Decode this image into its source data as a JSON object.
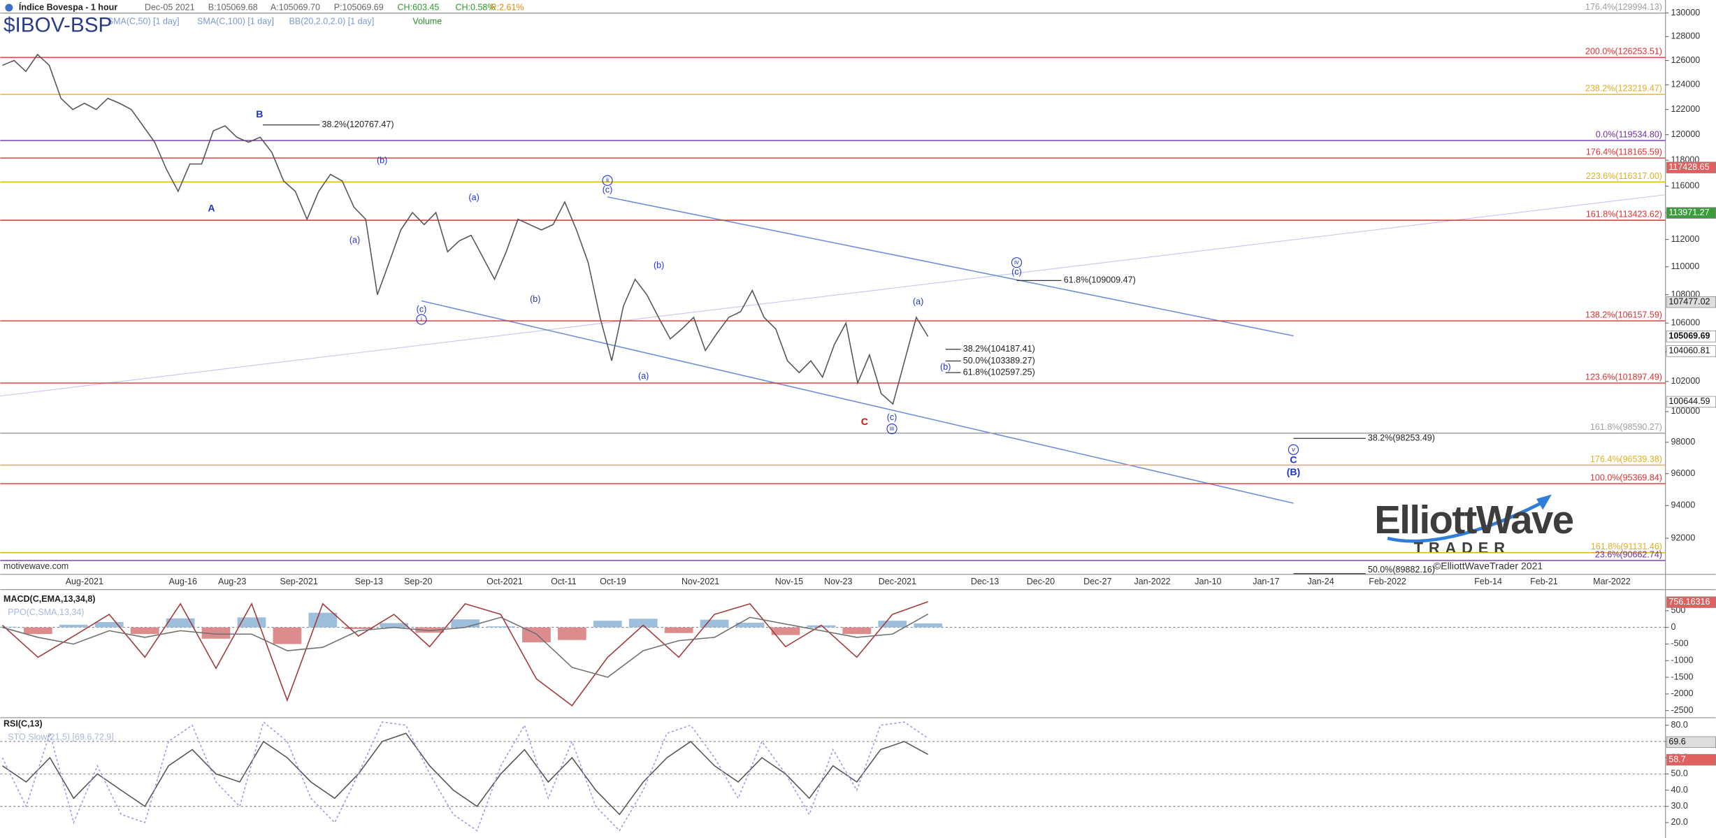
{
  "chart_data": [
    {
      "type": "line",
      "title": "Índice Bovespa - 1 hour",
      "symbol": "$IBOV-BSP",
      "date": "Dec-05 2021",
      "quote": [
        "B:105069.68",
        "A:105069.70",
        "P:105069.69"
      ],
      "change": [
        "CH:603.45",
        "CH:0.58%"
      ],
      "range": "R:2.61%",
      "studies": [
        "SMA(C,50) [1 day]",
        "SMA(C,100) [1 day]",
        "BB(20,2.0,2.0) [1 day]",
        "Volume"
      ],
      "xtick_labels": [
        "Aug-2021",
        "Aug-16",
        "Aug-23",
        "Sep-2021",
        "Sep-13",
        "Sep-20",
        "Oct-2021",
        "Oct-11",
        "Oct-19",
        "Nov-2021",
        "Nov-15",
        "Nov-23",
        "Dec-2021",
        "Dec-13",
        "Dec-20",
        "Dec-27",
        "Jan-2022",
        "Jan-10",
        "Jan-17",
        "Jan-24",
        "Feb-2022",
        "Feb-14",
        "Feb-21",
        "Mar-2022"
      ],
      "log": true,
      "ylim": [
        89840,
        131120
      ],
      "yticks": [
        92000,
        94000,
        96000,
        98000,
        100000,
        102000,
        104000,
        106000,
        108000,
        110000,
        112000,
        114000,
        116000,
        118000,
        120000,
        122000,
        124000,
        126000,
        128000,
        130000
      ],
      "series": [
        {
          "color": "#555555",
          "values": [
            125600,
            126000,
            125100,
            126500,
            125600,
            122900,
            122000,
            122500,
            122000,
            122900,
            122500,
            122000,
            120700,
            119400,
            117300,
            115600,
            117700,
            117700,
            120300,
            120700,
            119800,
            119400,
            119800,
            118600,
            116400,
            115600,
            113500,
            115600,
            116900,
            116400,
            114400,
            113500,
            108000,
            110300,
            112700,
            114000,
            113100,
            114000,
            111100,
            111900,
            112300,
            110700,
            109100,
            111100,
            113500,
            113100,
            112700,
            113100,
            114800,
            112700,
            110300,
            106400,
            103400,
            107200,
            109100,
            108000,
            106400,
            104900,
            105600,
            106400,
            104100,
            105300,
            106400,
            106800,
            108300,
            106400,
            105600,
            103400,
            102600,
            103400,
            102300,
            104500,
            106000,
            101900,
            103800,
            101200,
            100500,
            103400,
            106400,
            105070
          ]
        }
      ],
      "levels": [
        {
          "label": "176.4%(129994.13)",
          "value": 129994.13,
          "color": "#a0a0a0"
        },
        {
          "label": "200.0%(126253.51)",
          "value": 126253.51,
          "color": "#e03030"
        },
        {
          "label": "238.2%(123219.47)",
          "value": 123219.47,
          "color": "#e0b020"
        },
        {
          "label": "0.0%(119534.80)",
          "value": 119534.8,
          "color": "#7030a0"
        },
        {
          "label": "176.4%(118165.59)",
          "value": 118165.59,
          "color": "#e03030"
        },
        {
          "label": "223.6%(116317.00)",
          "value": 116317.0,
          "color": "#e0b020"
        },
        {
          "label": "161.8%(113423.62)",
          "value": 113423.62,
          "color": "#e03030"
        },
        {
          "label": "138.2%(106157.59)",
          "value": 106157.59,
          "color": "#e03030"
        },
        {
          "label": "123.6%(101897.49)",
          "value": 101897.49,
          "color": "#e03030"
        },
        {
          "label": "161.8%(98590.27)",
          "value": 98590.27,
          "color": "#a0a0a0"
        },
        {
          "label": "176.4%(96539.38)",
          "value": 96539.38,
          "color": "#e0b020"
        },
        {
          "label": "100.0%(95369.84)",
          "value": 95369.84,
          "color": "#e03030"
        },
        {
          "label": "161.8%(91131.46)",
          "value": 91131.46,
          "color": "#e0b020"
        },
        {
          "label": "23.6%(90662.74)",
          "value": 90662.74,
          "color": "#7030a0"
        }
      ],
      "fib_marks": [
        {
          "label": "38.2%(120767.47)",
          "value": 120767.47
        },
        {
          "label": "61.8%(109009.47)",
          "value": 109009.47
        },
        {
          "label": "38.2%(104187.41)",
          "value": 104187.41
        },
        {
          "label": "50.0%(103389.27)",
          "value": 103389.27
        },
        {
          "label": "61.8%(102597.25)",
          "value": 102597.25
        },
        {
          "label": "38.2%(98253.49)",
          "value": 98253.49
        },
        {
          "label": "50.0%(89882.16)",
          "value": 89882.16
        }
      ],
      "price_tags": [
        {
          "value": 117428.65,
          "color": "#e06060"
        },
        {
          "value": 113971.27,
          "color": "#3c9c3c"
        },
        {
          "value": 107477.02,
          "color": "#dddddd"
        },
        {
          "value": 105069.69,
          "color": "#ffffff"
        },
        {
          "value": 104060.81,
          "color": "#ffffff"
        },
        {
          "value": 100644.59,
          "color": "#ffffff"
        }
      ],
      "wave_labels": [
        "A",
        "B",
        "C",
        "(a)",
        "(b)",
        "(c)",
        "i",
        "(a)",
        "(b)",
        "(c)",
        "ii",
        "(a)",
        "(b)",
        "(c)",
        "iii",
        "(a)",
        "(b)",
        "(c)",
        "iv",
        "v",
        "C",
        "(B)"
      ],
      "credits": [
        "motivewave.com",
        "©ElliottWaveTrader 2021"
      ],
      "logo": [
        "ElliottWave",
        "TRADER"
      ]
    },
    {
      "type": "macd",
      "title": "MACD(C,EMA,13,34,8)",
      "subtitle": "PPO(C,SMA,13,34)",
      "ylim": [
        -2680,
        1100
      ],
      "yticks": [
        500,
        0,
        -500,
        -1000,
        -1500,
        -2000,
        -2500
      ],
      "ref_lines": [
        0
      ],
      "series": [
        {
          "color": "#a03838",
          "values": [
            65,
            -900,
            -260,
            390,
            -900,
            710,
            -1230,
            710,
            -2190,
            710,
            -260,
            390,
            -580,
            710,
            390,
            -1550,
            -2350,
            -900,
            65,
            -900,
            390,
            710,
            -580,
            65,
            -900,
            390,
            770
          ]
        },
        {
          "color": "#707070",
          "values": [
            0,
            -300,
            -500,
            -100,
            -300,
            -100,
            -200,
            -200,
            -700,
            -600,
            -100,
            0,
            -100,
            0,
            300,
            -200,
            -1200,
            -1500,
            -700,
            -400,
            -300,
            300,
            100,
            -100,
            -300,
            -200,
            400
          ]
        }
      ],
      "histogram": {
        "up_color": "#9dbfdc",
        "down_color": "#dc8c8c",
        "values": [
          20,
          -200,
          80,
          160,
          -200,
          270,
          -340,
          300,
          -500,
          440,
          -50,
          130,
          -160,
          240,
          30,
          -450,
          -380,
          200,
          260,
          -170,
          230,
          140,
          -230,
          60,
          -200,
          200,
          120
        ]
      },
      "price_tags": [
        {
          "value": 756.16316,
          "color": "#e06060"
        }
      ]
    },
    {
      "type": "line",
      "title": "RSI(C,13)",
      "subtitle": "STO Slow(21,5) [69.6,72.9]",
      "ylim": [
        10.5,
        84
      ],
      "yticks": [
        {
          "value": 80,
          "label": "80.0"
        },
        {
          "value": 70,
          "label": "70.0"
        },
        {
          "value": 60,
          "label": "60.0"
        },
        {
          "value": 50,
          "label": "50.0"
        },
        {
          "value": 40,
          "label": "40.0"
        },
        {
          "value": 30,
          "label": "30.0"
        },
        {
          "value": 20,
          "label": "20.0"
        }
      ],
      "ref_lines": [
        70,
        50,
        30
      ],
      "series": [
        {
          "color": "#555555",
          "values": [
            55,
            45,
            60,
            35,
            50,
            40,
            30,
            55,
            65,
            50,
            45,
            70,
            60,
            45,
            35,
            50,
            70,
            75,
            55,
            40,
            30,
            50,
            65,
            45,
            60,
            40,
            25,
            45,
            60,
            70,
            55,
            45,
            60,
            50,
            35,
            55,
            45,
            65,
            70,
            62
          ]
        },
        {
          "color": "#9a9ae6",
          "dashed": true,
          "values": [
            60,
            30,
            75,
            20,
            55,
            25,
            20,
            70,
            80,
            45,
            30,
            82,
            70,
            35,
            20,
            50,
            82,
            80,
            50,
            25,
            15,
            55,
            80,
            35,
            70,
            30,
            15,
            40,
            75,
            80,
            60,
            35,
            70,
            50,
            25,
            65,
            40,
            80,
            82,
            72
          ]
        }
      ],
      "price_tags": [
        {
          "value": 69.6,
          "color": "#dddddd"
        },
        {
          "value": 58.7,
          "color": "#e06060"
        }
      ]
    }
  ]
}
